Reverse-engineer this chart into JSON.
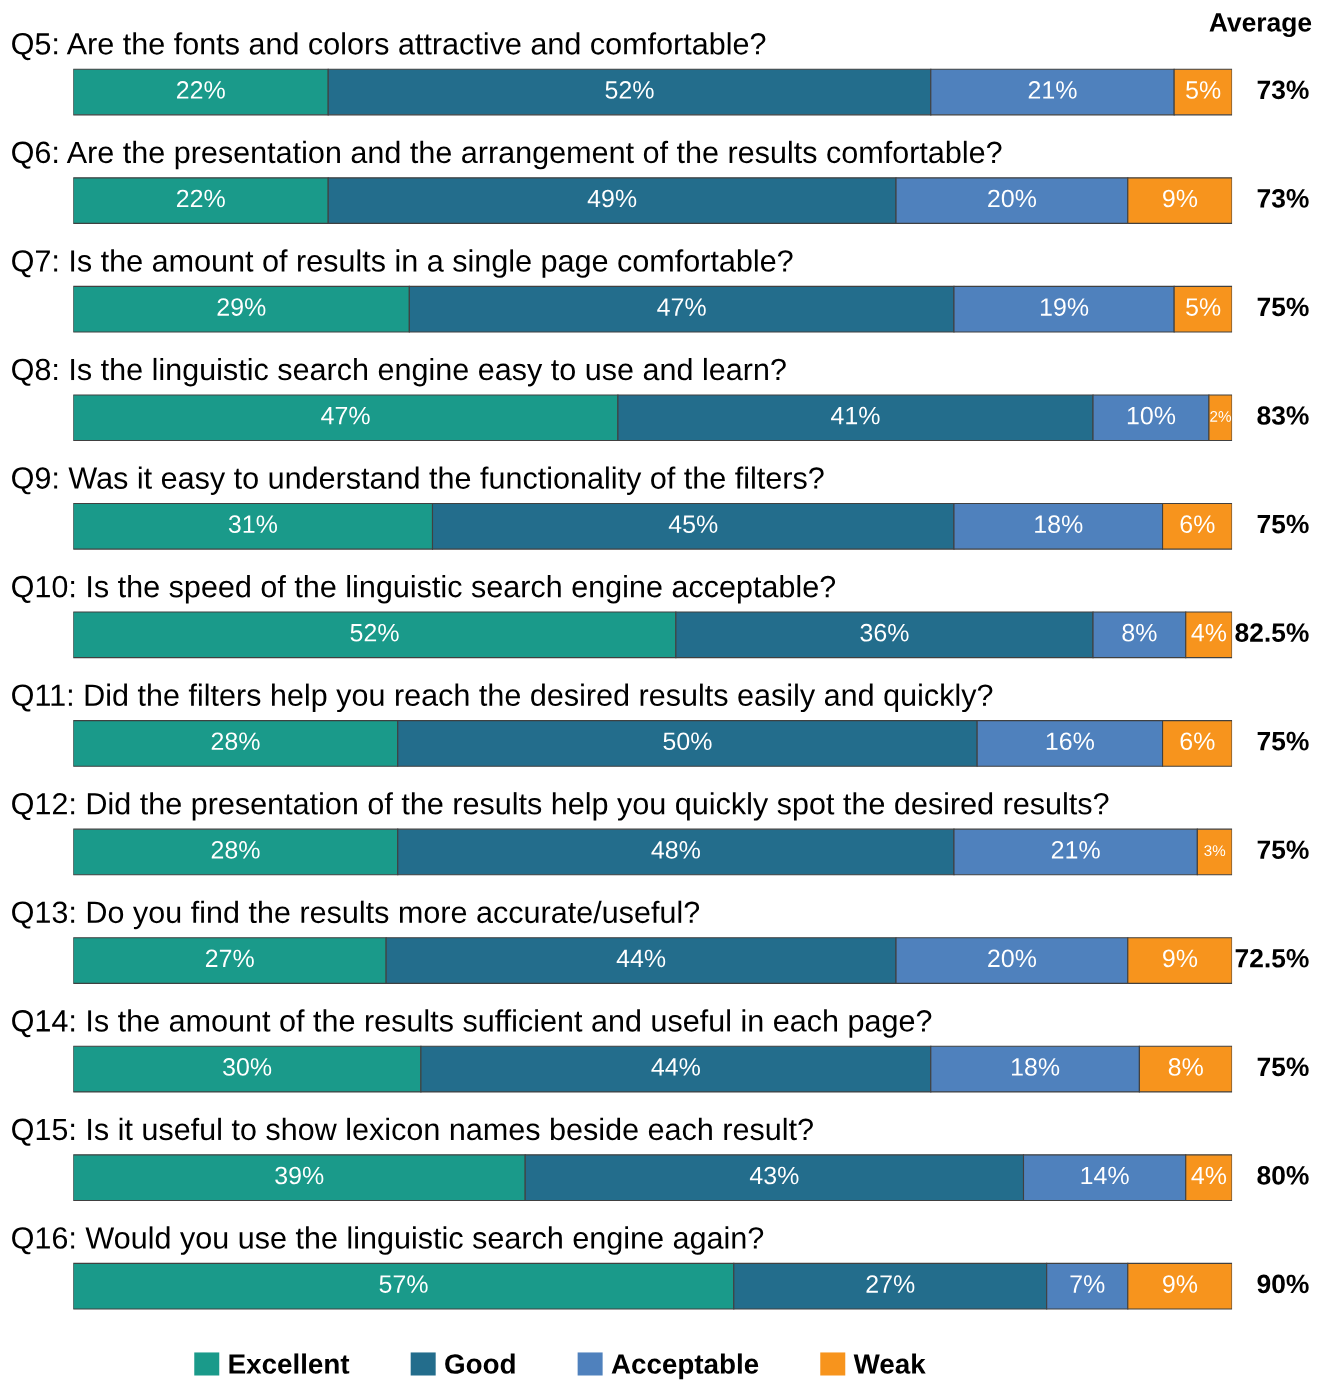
{
  "chart_data": {
    "type": "bar",
    "orientation": "horizontal",
    "stacked": true,
    "legend": "bottom",
    "categories": [
      "Q5: Are the fonts and colors attractive and comfortable?",
      "Q6: Are the presentation and the arrangement of the results comfortable?",
      "Q7: Is the amount of results in a single page comfortable?",
      "Q8: Is the linguistic search engine easy to use and learn?",
      "Q9: Was it easy to understand the functionality of the filters?",
      "Q10: Is the speed of the linguistic search engine acceptable?",
      "Q11: Did the filters help you reach the desired results easily and quickly?",
      "Q12: Did the presentation of the results help you quickly spot the desired results?",
      "Q13: Do you find the results more accurate/useful?",
      "Q14: Is the amount of the results sufficient and useful in each page?",
      "Q15: Is it useful to show lexicon names beside each result?",
      "Q16: Would you use the linguistic search engine again?"
    ],
    "series": [
      {
        "name": "Excellent",
        "color": "#1a9a8a",
        "values": [
          22,
          22,
          29,
          47,
          31,
          52,
          28,
          28,
          27,
          30,
          39,
          57
        ],
        "value_labels": [
          "22%",
          "22%",
          "29%",
          "47%",
          "31%",
          "52%",
          "28%",
          "28%",
          "27%",
          "30%",
          "39%",
          "57%"
        ]
      },
      {
        "name": "Good",
        "color": "#236d8c",
        "values": [
          52,
          49,
          47,
          41,
          45,
          36,
          50,
          48,
          44,
          44,
          43,
          27
        ],
        "value_labels": [
          "52%",
          "49%",
          "47%",
          "41%",
          "45%",
          "36%",
          "50%",
          "48%",
          "44%",
          "44%",
          "43%",
          "27%"
        ]
      },
      {
        "name": "Acceptable",
        "color": "#4f81bd",
        "values": [
          21,
          20,
          19,
          10,
          18,
          8,
          16,
          21,
          20,
          18,
          14,
          7
        ],
        "value_labels": [
          "21%",
          "20%",
          "19%",
          "10%",
          "18%",
          "8%",
          "16%",
          "21%",
          "20%",
          "18%",
          "14%",
          "7%"
        ]
      },
      {
        "name": "Weak",
        "color": "#f7941d",
        "values": [
          5,
          9,
          5,
          2,
          6,
          4,
          6,
          3,
          9,
          8,
          4,
          9
        ],
        "value_labels": [
          "5%",
          "9%",
          "5%",
          "2%",
          "6%",
          "4%",
          "6%",
          "3%",
          "9%",
          "8%",
          "4%",
          "9%"
        ]
      }
    ],
    "annotations": [
      "Average",
      "73%",
      "73%",
      "75%",
      "83%",
      "75%",
      "82.5%",
      "75%",
      "75%",
      "72.5%",
      "75%",
      "80%",
      "90%"
    ]
  }
}
